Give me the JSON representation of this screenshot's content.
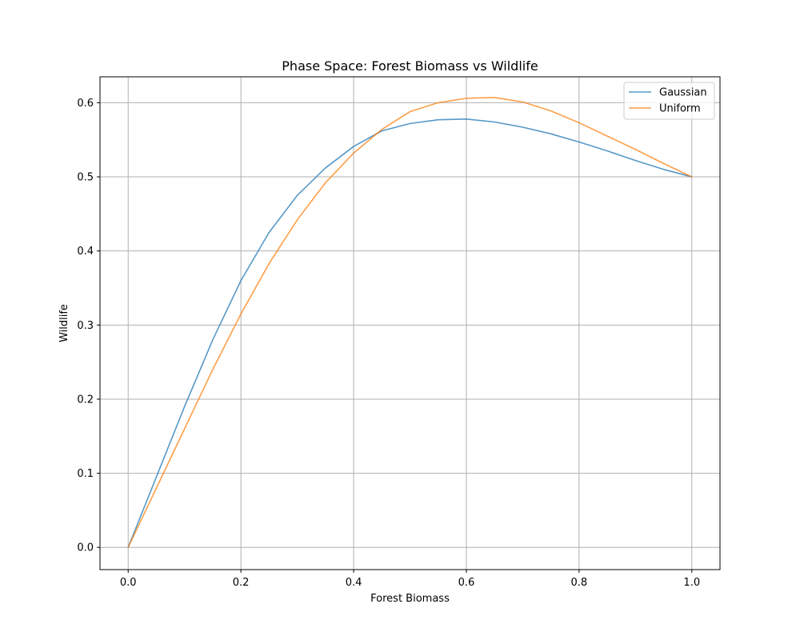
{
  "chart_data": {
    "type": "line",
    "title": "Phase Space: Forest Biomass vs Wildlife",
    "xlabel": "Forest Biomass",
    "ylabel": "Wildlife",
    "xlim": [
      -0.05,
      1.05
    ],
    "ylim": [
      -0.03,
      0.635
    ],
    "xticks": [
      "0.0",
      "0.2",
      "0.4",
      "0.6",
      "0.8",
      "1.0"
    ],
    "yticks": [
      "0.0",
      "0.1",
      "0.2",
      "0.3",
      "0.4",
      "0.5",
      "0.6"
    ],
    "grid": true,
    "legend_position": "top-right",
    "series": [
      {
        "name": "Gaussian",
        "color": "#1f77b4",
        "points": [
          [
            0.0,
            0.0
          ],
          [
            0.05,
            0.095
          ],
          [
            0.1,
            0.19
          ],
          [
            0.15,
            0.28
          ],
          [
            0.2,
            0.36
          ],
          [
            0.25,
            0.425
          ],
          [
            0.3,
            0.475
          ],
          [
            0.35,
            0.512
          ],
          [
            0.4,
            0.541
          ],
          [
            0.45,
            0.562
          ],
          [
            0.5,
            0.572
          ],
          [
            0.55,
            0.577
          ],
          [
            0.6,
            0.578
          ],
          [
            0.65,
            0.574
          ],
          [
            0.7,
            0.567
          ],
          [
            0.75,
            0.558
          ],
          [
            0.8,
            0.547
          ],
          [
            0.85,
            0.535
          ],
          [
            0.9,
            0.522
          ],
          [
            0.95,
            0.51
          ],
          [
            1.0,
            0.5
          ]
        ]
      },
      {
        "name": "Uniform",
        "color": "#ff7f0e",
        "points": [
          [
            0.0,
            0.0
          ],
          [
            0.05,
            0.08
          ],
          [
            0.1,
            0.16
          ],
          [
            0.15,
            0.24
          ],
          [
            0.2,
            0.315
          ],
          [
            0.25,
            0.383
          ],
          [
            0.3,
            0.442
          ],
          [
            0.35,
            0.492
          ],
          [
            0.4,
            0.532
          ],
          [
            0.45,
            0.564
          ],
          [
            0.5,
            0.588
          ],
          [
            0.55,
            0.6
          ],
          [
            0.6,
            0.606
          ],
          [
            0.65,
            0.607
          ],
          [
            0.7,
            0.601
          ],
          [
            0.75,
            0.589
          ],
          [
            0.8,
            0.573
          ],
          [
            0.85,
            0.555
          ],
          [
            0.9,
            0.537
          ],
          [
            0.95,
            0.518
          ],
          [
            1.0,
            0.5
          ]
        ]
      }
    ]
  }
}
